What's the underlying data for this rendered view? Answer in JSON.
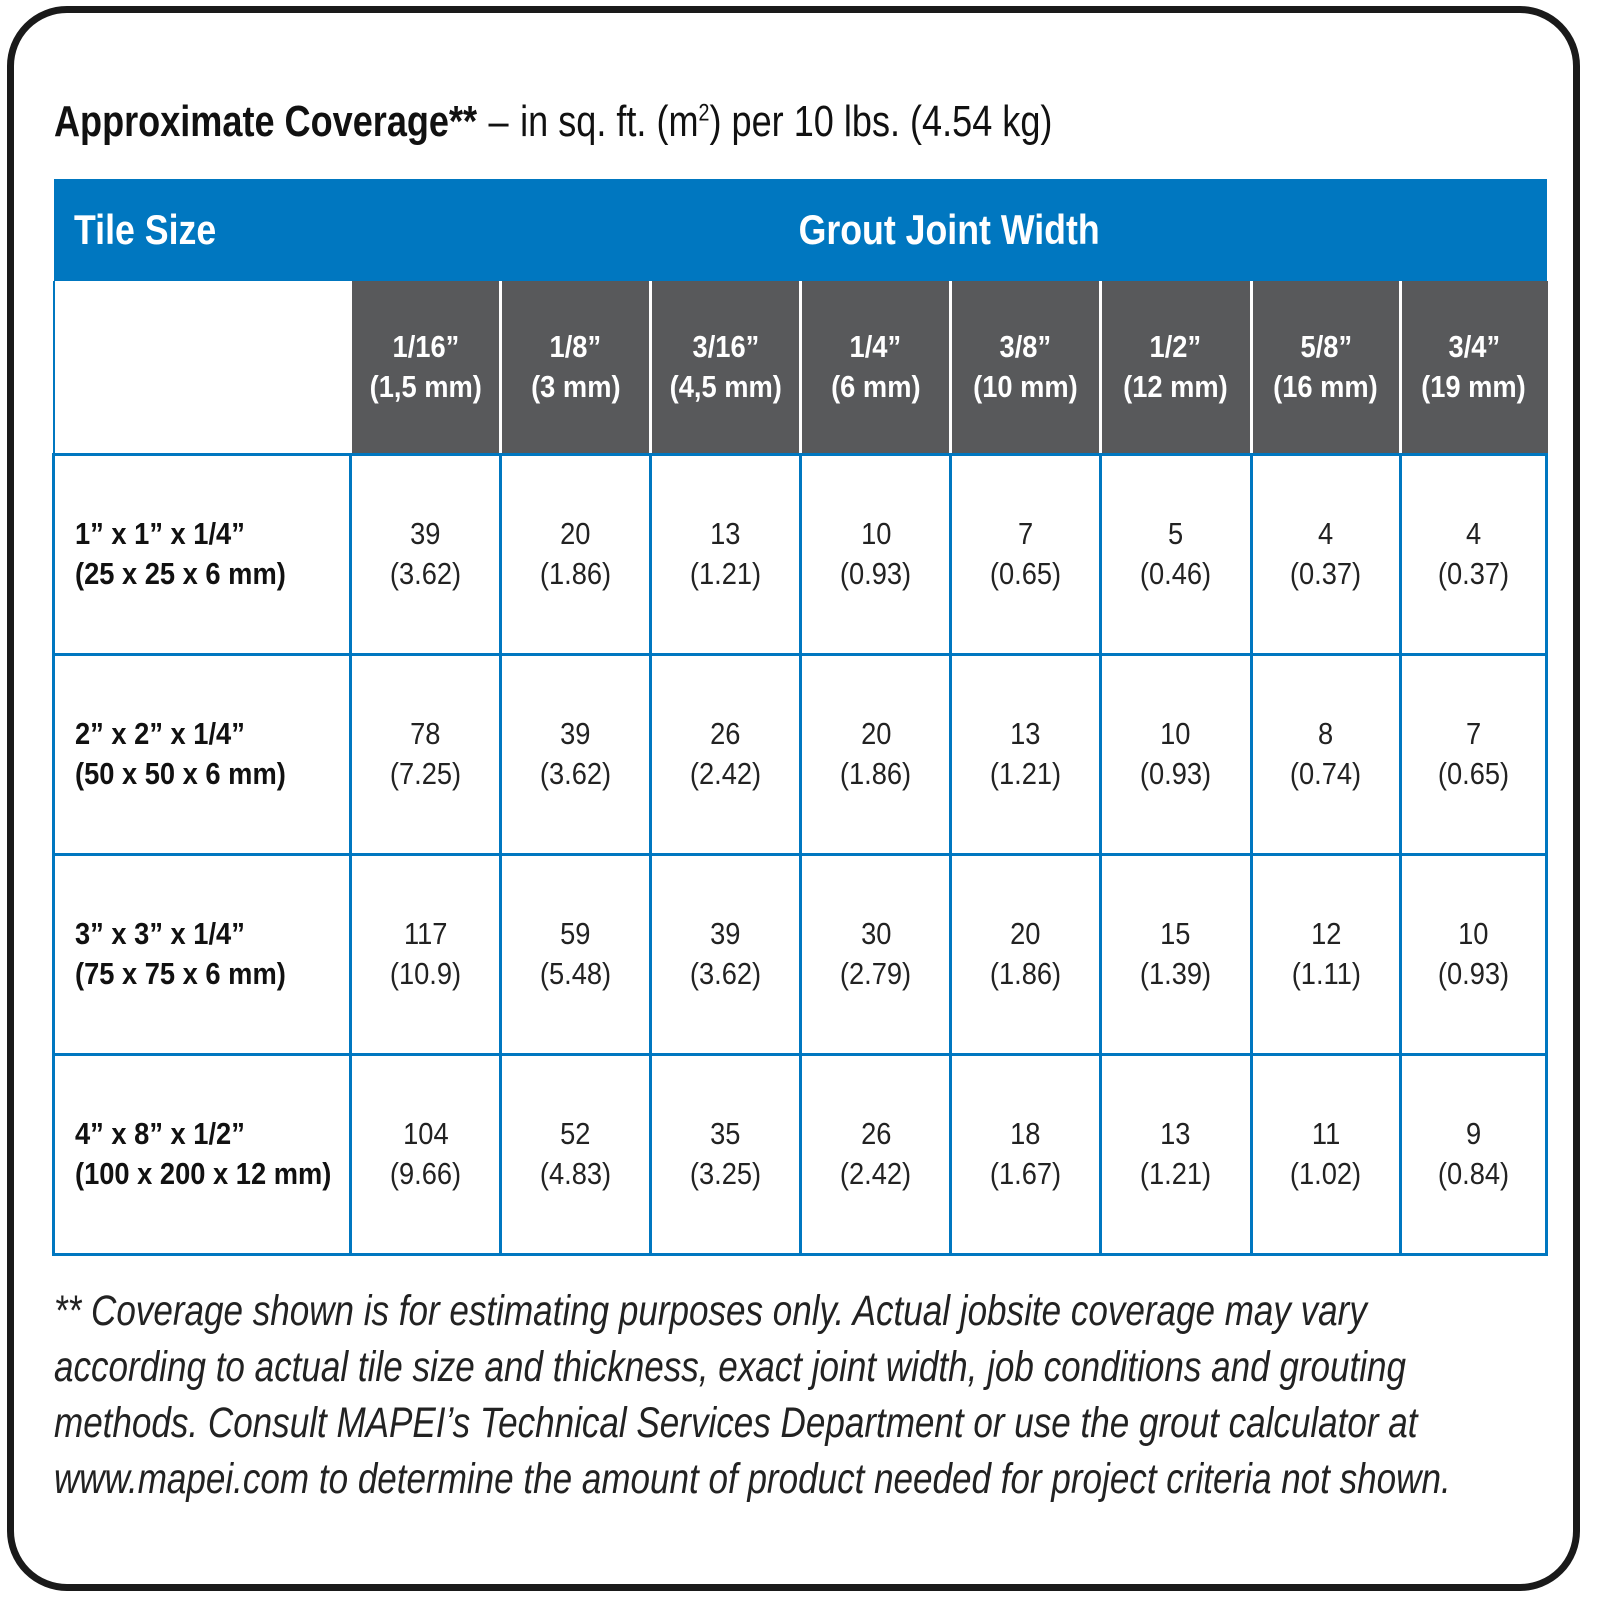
{
  "heading": {
    "bold": "Approximate Coverage**",
    "dash": "–",
    "units_pre": "in sq. ft. (m",
    "units_sup": "2",
    "units_post": ") per 10 lbs. (4.54 kg)"
  },
  "table": {
    "tile_size_header": "Tile Size",
    "grout_header": "Grout Joint Width",
    "columns": [
      {
        "in": "1/16”",
        "mm": "(1,5 mm)"
      },
      {
        "in": "1/8”",
        "mm": "(3 mm)"
      },
      {
        "in": "3/16”",
        "mm": "(4,5 mm)"
      },
      {
        "in": "1/4”",
        "mm": "(6 mm)"
      },
      {
        "in": "3/8”",
        "mm": "(10 mm)"
      },
      {
        "in": "1/2”",
        "mm": "(12 mm)"
      },
      {
        "in": "5/8”",
        "mm": "(16 mm)"
      },
      {
        "in": "3/4”",
        "mm": "(19 mm)"
      }
    ],
    "rows": [
      {
        "size_in": "1” x 1” x 1/4”",
        "size_mm": "(25 x 25 x 6 mm)",
        "cells": [
          {
            "sqft": "39",
            "m2": "(3.62)"
          },
          {
            "sqft": "20",
            "m2": "(1.86)"
          },
          {
            "sqft": "13",
            "m2": "(1.21)"
          },
          {
            "sqft": "10",
            "m2": "(0.93)"
          },
          {
            "sqft": "7",
            "m2": "(0.65)"
          },
          {
            "sqft": "5",
            "m2": "(0.46)"
          },
          {
            "sqft": "4",
            "m2": "(0.37)"
          },
          {
            "sqft": "4",
            "m2": "(0.37)"
          }
        ]
      },
      {
        "size_in": "2” x 2” x 1/4”",
        "size_mm": "(50 x 50 x 6 mm)",
        "cells": [
          {
            "sqft": "78",
            "m2": "(7.25)"
          },
          {
            "sqft": "39",
            "m2": "(3.62)"
          },
          {
            "sqft": "26",
            "m2": "(2.42)"
          },
          {
            "sqft": "20",
            "m2": "(1.86)"
          },
          {
            "sqft": "13",
            "m2": "(1.21)"
          },
          {
            "sqft": "10",
            "m2": "(0.93)"
          },
          {
            "sqft": "8",
            "m2": "(0.74)"
          },
          {
            "sqft": "7",
            "m2": "(0.65)"
          }
        ]
      },
      {
        "size_in": "3” x 3” x 1/4”",
        "size_mm": "(75 x 75 x 6 mm)",
        "cells": [
          {
            "sqft": "117",
            "m2": "(10.9)"
          },
          {
            "sqft": "59",
            "m2": "(5.48)"
          },
          {
            "sqft": "39",
            "m2": "(3.62)"
          },
          {
            "sqft": "30",
            "m2": "(2.79)"
          },
          {
            "sqft": "20",
            "m2": "(1.86)"
          },
          {
            "sqft": "15",
            "m2": "(1.39)"
          },
          {
            "sqft": "12",
            "m2": "(1.11)"
          },
          {
            "sqft": "10",
            "m2": "(0.93)"
          }
        ]
      },
      {
        "size_in": "4” x 8” x 1/2”",
        "size_mm": "(100 x 200 x 12 mm)",
        "cells": [
          {
            "sqft": "104",
            "m2": "(9.66)"
          },
          {
            "sqft": "52",
            "m2": "(4.83)"
          },
          {
            "sqft": "35",
            "m2": "(3.25)"
          },
          {
            "sqft": "26",
            "m2": "(2.42)"
          },
          {
            "sqft": "18",
            "m2": "(1.67)"
          },
          {
            "sqft": "13",
            "m2": "(1.21)"
          },
          {
            "sqft": "11",
            "m2": "(1.02)"
          },
          {
            "sqft": "9",
            "m2": "(0.84)"
          }
        ]
      }
    ]
  },
  "footnote": {
    "line1": "** Coverage shown is for estimating purposes only. Actual jobsite coverage may vary",
    "line2": "according to actual tile size and thickness, exact joint width, job conditions and grouting",
    "line3": "methods. Consult MAPEI’s Technical Services Department or use the grout calculator at",
    "line4": "www.mapei.com to determine the amount of product needed for project criteria not shown."
  },
  "colors": {
    "banner_blue": "#0077c0",
    "header_gray": "#58595b",
    "grid_blue": "#0077c0"
  }
}
